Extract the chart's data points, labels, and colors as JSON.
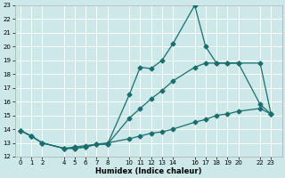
{
  "xlabel": "Humidex (Indice chaleur)",
  "bg_color": "#cce8e8",
  "grid_color": "#ffffff",
  "line_color": "#1a6e6e",
  "ylim": [
    12,
    23
  ],
  "yticks": [
    12,
    13,
    14,
    15,
    16,
    17,
    18,
    19,
    20,
    21,
    22,
    23
  ],
  "xticks": [
    0,
    1,
    2,
    4,
    5,
    6,
    7,
    8,
    10,
    11,
    12,
    13,
    14,
    16,
    17,
    18,
    19,
    20,
    22,
    23
  ],
  "xlim": [
    -0.5,
    24.0
  ],
  "line1_x": [
    0,
    1,
    2,
    4,
    5,
    6,
    7,
    8,
    10,
    11,
    12,
    13,
    14,
    16,
    17,
    18,
    19,
    20,
    22,
    23
  ],
  "line1_y": [
    13.9,
    13.5,
    13.0,
    12.6,
    12.6,
    12.7,
    12.9,
    12.9,
    16.5,
    18.5,
    18.4,
    19.0,
    20.2,
    23.0,
    20.0,
    18.8,
    18.8,
    18.8,
    15.8,
    15.1
  ],
  "line2_x": [
    0,
    1,
    2,
    4,
    5,
    6,
    7,
    8,
    10,
    11,
    12,
    13,
    14,
    16,
    17,
    18,
    19,
    20,
    22,
    23
  ],
  "line2_y": [
    13.9,
    13.5,
    13.0,
    12.6,
    12.6,
    12.7,
    12.9,
    12.9,
    14.8,
    15.5,
    16.2,
    16.8,
    17.5,
    18.5,
    18.8,
    18.8,
    18.8,
    18.8,
    18.8,
    15.1
  ],
  "line3_x": [
    0,
    1,
    2,
    4,
    5,
    6,
    7,
    8,
    10,
    11,
    12,
    13,
    14,
    16,
    17,
    18,
    19,
    20,
    22,
    23
  ],
  "line3_y": [
    13.9,
    13.5,
    13.0,
    12.6,
    12.7,
    12.8,
    12.9,
    13.0,
    13.3,
    13.5,
    13.7,
    13.8,
    14.0,
    14.5,
    14.7,
    15.0,
    15.1,
    15.3,
    15.5,
    15.1
  ]
}
